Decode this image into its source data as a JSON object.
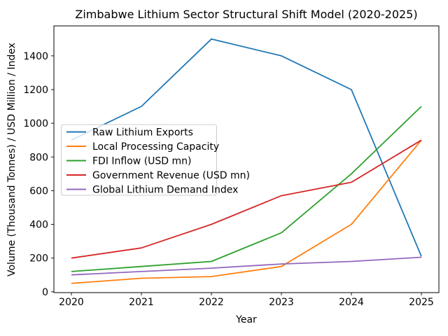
{
  "chart_data": {
    "type": "line",
    "title": "Zimbabwe Lithium Sector Structural Shift Model (2020-2025)",
    "xlabel": "Year",
    "ylabel": "Volume (Thousand Tonnes) / USD Million / Index",
    "x": [
      2020,
      2021,
      2022,
      2023,
      2024,
      2025
    ],
    "series": [
      {
        "name": "Raw Lithium Exports",
        "color": "#1f77b4",
        "values": [
          900,
          1100,
          1500,
          1400,
          1200,
          210
        ]
      },
      {
        "name": "Local Processing Capacity",
        "color": "#ff7f0e",
        "values": [
          50,
          80,
          90,
          150,
          400,
          900
        ]
      },
      {
        "name": "FDI Inflow (USD mn)",
        "color": "#2ca02c",
        "values": [
          120,
          150,
          180,
          350,
          700,
          1100
        ]
      },
      {
        "name": "Government Revenue (USD mn)",
        "color": "#d62728",
        "values": [
          200,
          260,
          400,
          570,
          650,
          900
        ]
      },
      {
        "name": "Global Lithium Demand Index",
        "color": "#9467bd",
        "values": [
          100,
          120,
          140,
          165,
          180,
          205
        ]
      }
    ],
    "xticks": [
      2020,
      2021,
      2022,
      2023,
      2024,
      2025
    ],
    "yticks": [
      0,
      200,
      400,
      600,
      800,
      1000,
      1200,
      1400
    ],
    "xlim": [
      2019.75,
      2025.25
    ],
    "ylim": [
      -5,
      1578
    ],
    "grid": false,
    "legend_position": "center-left",
    "axis_color": "#000000",
    "background": "#ffffff",
    "legend_border_color": "#cccccc"
  }
}
